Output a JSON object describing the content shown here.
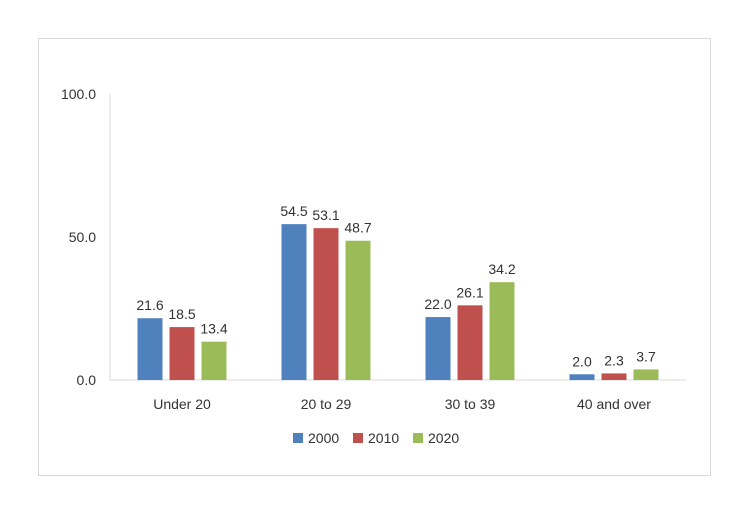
{
  "chart_data": {
    "type": "bar",
    "categories": [
      "Under 20",
      "20 to 29",
      "30 to 39",
      "40 and over"
    ],
    "series": [
      {
        "name": "2000",
        "color": "#4f81bd",
        "values": [
          21.6,
          54.5,
          22.0,
          2.0
        ]
      },
      {
        "name": "2010",
        "color": "#c0504d",
        "values": [
          18.5,
          53.1,
          26.1,
          2.3
        ]
      },
      {
        "name": "2020",
        "color": "#9bbb59",
        "values": [
          13.4,
          48.7,
          34.2,
          3.7
        ]
      }
    ],
    "yticks": [
      "0.0",
      "50.0",
      "100.0"
    ],
    "ylim": [
      0,
      100
    ],
    "grid": false,
    "legend": "bottom",
    "title": "",
    "xlabel": "",
    "ylabel": ""
  }
}
